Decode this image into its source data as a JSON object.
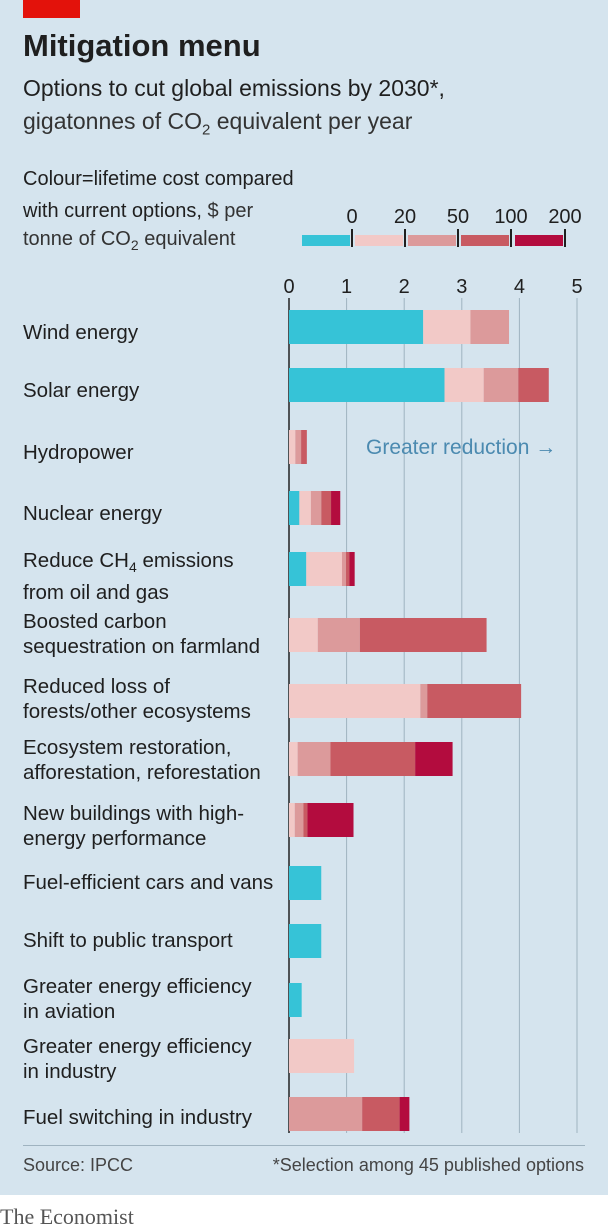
{
  "title": "Mitigation menu",
  "subtitle_line1": "Options to cut global emissions by 2030*,",
  "subtitle_line2_before": "gigatonnes of CO",
  "subtitle_line2_sub": "2",
  "subtitle_line2_after": " equivalent per year",
  "key": {
    "line1": "Colour=lifetime cost compared",
    "line2_bold": "with current options,",
    "line2_rest": " $ per",
    "line3_before": "tonne of CO",
    "line3_sub": "2",
    "line3_after": " equivalent",
    "ticks": [
      "0",
      "20",
      "50",
      "100",
      "200"
    ]
  },
  "annotation": "Greater reduction →",
  "source": "Source: IPCC",
  "footnote": "*Selection among 45 published options",
  "brand": "The Economist",
  "colors": {
    "background": "#d5e4ee",
    "brand_red": "#e3120b",
    "cost_below_0": "#36c3d7",
    "cost_0_20": "#f2c9c7",
    "cost_20_50": "#dc9a9b",
    "cost_50_100": "#c85a62",
    "cost_100_200": "#b30c3e",
    "annotation": "#4b8ab0"
  },
  "chart_data": {
    "type": "bar",
    "orientation": "horizontal",
    "stacked": true,
    "x_ticks": [
      "0",
      "1",
      "2",
      "3",
      "4",
      "5"
    ],
    "xlim": [
      0,
      5
    ],
    "grid": true,
    "categories": [
      {
        "line1": "Wind energy",
        "line2": ""
      },
      {
        "line1": "Solar energy",
        "line2": ""
      },
      {
        "line1": "Hydropower",
        "line2": ""
      },
      {
        "line1": "Nuclear energy",
        "line2": ""
      },
      {
        "line1": "Reduce CH",
        "line1_sub": "4",
        "line1_after": " emissions",
        "line2": "from oil and gas"
      },
      {
        "line1": "Boosted carbon",
        "line2": "sequestration on farmland"
      },
      {
        "line1": "Reduced loss of",
        "line2": "forests/other ecosystems"
      },
      {
        "line1": "Ecosystem restoration,",
        "line2": "afforestation, reforestation"
      },
      {
        "line1": "New buildings with high-",
        "line2": "energy performance"
      },
      {
        "line1": "Fuel-efficient cars and vans",
        "line2": ""
      },
      {
        "line1": "Shift to public transport",
        "line2": ""
      },
      {
        "line1": "Greater energy efficiency",
        "line2": "in aviation"
      },
      {
        "line1": "Greater energy efficiency",
        "line2": "in industry"
      },
      {
        "line1": "Fuel switching in industry",
        "line2": ""
      }
    ],
    "series": [
      {
        "legend_label": "0",
        "color": "#36c3d7",
        "values": [
          2.33,
          2.7,
          0,
          0.18,
          0.3,
          0,
          0,
          0,
          0,
          0.56,
          0.56,
          0.22,
          0,
          0
        ]
      },
      {
        "legend_label": "20",
        "color": "#f2c9c7",
        "values": [
          0.82,
          0.68,
          0.11,
          0.2,
          0.62,
          0.5,
          2.28,
          0.15,
          0.1,
          0,
          0,
          0,
          1.13,
          0
        ]
      },
      {
        "legend_label": "50",
        "color": "#dc9a9b",
        "values": [
          0.67,
          0.6,
          0.1,
          0.18,
          0.07,
          0.73,
          0.12,
          0.57,
          0.15,
          0,
          0,
          0,
          0,
          1.27
        ]
      },
      {
        "legend_label": "100",
        "color": "#c85a62",
        "values": [
          0,
          0.53,
          0.1,
          0.17,
          0.06,
          2.2,
          1.63,
          1.47,
          0.07,
          0,
          0,
          0,
          0,
          0.65
        ]
      },
      {
        "legend_label": "200",
        "color": "#b30c3e",
        "values": [
          0,
          0,
          0,
          0.16,
          0.09,
          0,
          0,
          0.65,
          0.8,
          0,
          0,
          0,
          0,
          0.17
        ]
      }
    ]
  }
}
